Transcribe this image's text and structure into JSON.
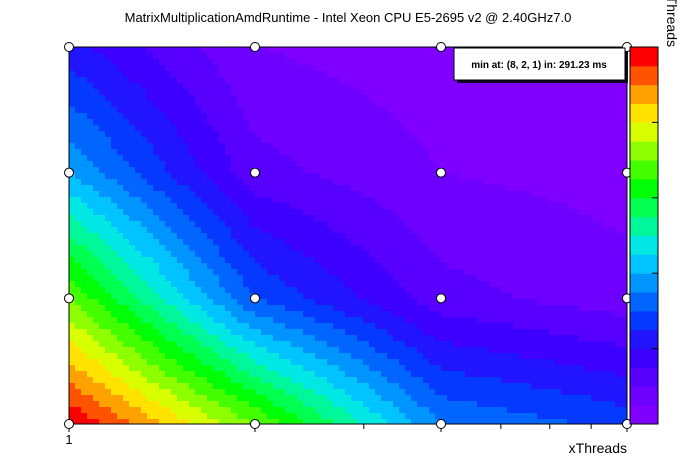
{
  "chart_data": {
    "type": "heatmap",
    "title": "MatrixMultiplicationAmdRuntime - Intel Xeon CPU E5-2695 v2 @ 2.40GHz7.0",
    "xlabel": "xThreads",
    "ylabel": "yThreads",
    "x_tick_labels": [
      "1"
    ],
    "x": [
      1,
      2,
      4,
      8
    ],
    "y": [
      1,
      2,
      4,
      8
    ],
    "x_scale": "log",
    "y_scale": "log",
    "z": [
      [
        1.0,
        0.7,
        0.35,
        0.28
      ],
      [
        0.7,
        0.3,
        0.12,
        0.07
      ],
      [
        0.4,
        0.12,
        0.05,
        0.03
      ],
      [
        0.22,
        0.05,
        0.02,
        0.0
      ]
    ],
    "min_annotation": "min at: (8, 2, 1) in: 291.23 ms",
    "colormap": [
      "#8000ff",
      "#6000ff",
      "#3000ff",
      "#0040ff",
      "#0090ff",
      "#00e0ff",
      "#00ff80",
      "#00ff00",
      "#80ff00",
      "#ffff00",
      "#ff9000",
      "#ff0000"
    ],
    "colorbar_levels": 20
  }
}
